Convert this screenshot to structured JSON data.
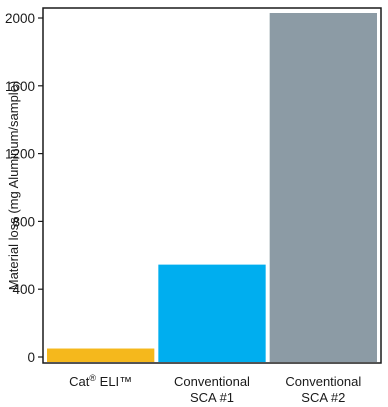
{
  "chart_data": {
    "type": "bar",
    "categories": [
      {
        "lines": [
          "Cat",
          "®",
          " ELI™"
        ],
        "display": "Cat® ELI™"
      },
      {
        "lines": [
          "Conventional",
          "SCA #1"
        ],
        "display": "Conventional SCA #1"
      },
      {
        "lines": [
          "Conventional",
          "SCA #2"
        ],
        "display": "Conventional SCA #2"
      }
    ],
    "values": [
      50,
      545,
      2040
    ],
    "colors": [
      "#f5b81c",
      "#00aeef",
      "#8c9ba5"
    ],
    "title": "",
    "xlabel": "",
    "ylabel": "Material loss (mg Aluminum/sample)",
    "ylim": [
      0,
      2040
    ],
    "yticks": [
      0,
      400,
      800,
      1200,
      1600,
      2000
    ],
    "grid": false
  }
}
